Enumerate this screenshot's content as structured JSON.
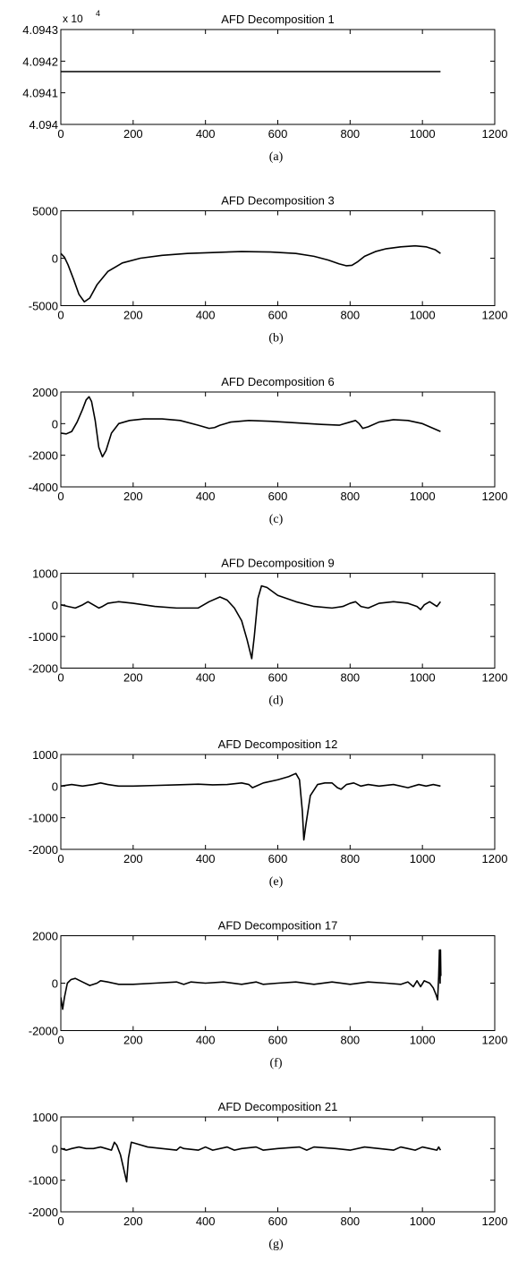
{
  "chart_data": [
    {
      "type": "line",
      "caption": "(a)",
      "title": "AFD Decomposition 1",
      "xlabel": "",
      "ylabel": "",
      "exponent_label": "x 10",
      "exponent_power": "4",
      "xlim": [
        0,
        1200
      ],
      "ylim": [
        4.094,
        4.0943
      ],
      "xticks": [
        "0",
        "200",
        "400",
        "600",
        "800",
        "1000",
        "1200"
      ],
      "yticks": [
        {
          "v": 4.094,
          "label": "4.094"
        },
        {
          "v": 4.0941,
          "label": "4.0941"
        },
        {
          "v": 4.0942,
          "label": "4.0942"
        },
        {
          "v": 4.0943,
          "label": "4.0943"
        }
      ],
      "grid": false,
      "x": [
        0,
        1050
      ],
      "y": [
        4.094167,
        4.094167
      ]
    },
    {
      "type": "line",
      "caption": "(b)",
      "title": "AFD Decomposition 3",
      "xlabel": "",
      "ylabel": "",
      "xlim": [
        0,
        1200
      ],
      "ylim": [
        -5000,
        5000
      ],
      "xticks": [
        "0",
        "200",
        "400",
        "600",
        "800",
        "1000",
        "1200"
      ],
      "yticks": [
        {
          "v": -5000,
          "label": "-5000"
        },
        {
          "v": 0,
          "label": "0"
        },
        {
          "v": 5000,
          "label": "5000"
        }
      ],
      "grid": false,
      "x": [
        0,
        10,
        20,
        35,
        50,
        65,
        80,
        100,
        130,
        170,
        220,
        280,
        350,
        420,
        500,
        580,
        650,
        700,
        740,
        770,
        790,
        805,
        820,
        840,
        870,
        900,
        940,
        980,
        1010,
        1035,
        1050
      ],
      "y": [
        500,
        100,
        -700,
        -2200,
        -3800,
        -4600,
        -4200,
        -2800,
        -1400,
        -500,
        0,
        300,
        500,
        600,
        700,
        650,
        500,
        200,
        -200,
        -600,
        -800,
        -750,
        -400,
        200,
        700,
        1000,
        1200,
        1300,
        1200,
        900,
        500
      ]
    },
    {
      "type": "line",
      "caption": "(c)",
      "title": "AFD Decomposition 6",
      "xlabel": "",
      "ylabel": "",
      "xlim": [
        0,
        1200
      ],
      "ylim": [
        -4000,
        2000
      ],
      "xticks": [
        "0",
        "200",
        "400",
        "600",
        "800",
        "1000",
        "1200"
      ],
      "yticks": [
        {
          "v": -4000,
          "label": "-4000"
        },
        {
          "v": -2000,
          "label": "-2000"
        },
        {
          "v": 0,
          "label": "0"
        },
        {
          "v": 2000,
          "label": "2000"
        }
      ],
      "grid": false,
      "x": [
        0,
        15,
        30,
        45,
        60,
        70,
        78,
        85,
        95,
        105,
        115,
        125,
        140,
        160,
        190,
        230,
        280,
        330,
        380,
        410,
        425,
        440,
        470,
        520,
        580,
        650,
        720,
        770,
        800,
        815,
        825,
        835,
        850,
        880,
        920,
        960,
        1000,
        1030,
        1050
      ],
      "y": [
        -600,
        -650,
        -500,
        100,
        900,
        1500,
        1700,
        1400,
        200,
        -1500,
        -2100,
        -1700,
        -600,
        0,
        200,
        300,
        300,
        200,
        -100,
        -300,
        -250,
        -100,
        100,
        200,
        150,
        50,
        -50,
        -100,
        100,
        200,
        0,
        -300,
        -200,
        100,
        250,
        200,
        0,
        -300,
        -500
      ]
    },
    {
      "type": "line",
      "caption": "(d)",
      "title": "AFD Decomposition 9",
      "xlabel": "",
      "ylabel": "",
      "xlim": [
        0,
        1200
      ],
      "ylim": [
        -2000,
        1000
      ],
      "xticks": [
        "0",
        "200",
        "400",
        "600",
        "800",
        "1000",
        "1200"
      ],
      "yticks": [
        {
          "v": -2000,
          "label": "-2000"
        },
        {
          "v": -1000,
          "label": "-1000"
        },
        {
          "v": 0,
          "label": "0"
        },
        {
          "v": 1000,
          "label": "1000"
        }
      ],
      "grid": false,
      "x": [
        0,
        20,
        40,
        60,
        75,
        90,
        105,
        115,
        130,
        160,
        200,
        260,
        320,
        380,
        410,
        440,
        460,
        480,
        500,
        515,
        528,
        535,
        545,
        555,
        570,
        600,
        650,
        700,
        750,
        780,
        800,
        815,
        830,
        850,
        880,
        920,
        960,
        985,
        995,
        1005,
        1020,
        1040,
        1050
      ],
      "y": [
        0,
        -50,
        -100,
        0,
        100,
        0,
        -100,
        -50,
        50,
        100,
        50,
        -50,
        -100,
        -100,
        100,
        250,
        150,
        -100,
        -500,
        -1100,
        -1700,
        -1000,
        200,
        600,
        550,
        300,
        100,
        -50,
        -100,
        -50,
        50,
        100,
        -50,
        -100,
        50,
        100,
        50,
        -50,
        -150,
        0,
        100,
        -50,
        100
      ]
    },
    {
      "type": "line",
      "caption": "(e)",
      "title": "AFD Decomposition 12",
      "xlabel": "",
      "ylabel": "",
      "xlim": [
        0,
        1200
      ],
      "ylim": [
        -2000,
        1000
      ],
      "xticks": [
        "0",
        "200",
        "400",
        "600",
        "800",
        "1000",
        "1200"
      ],
      "yticks": [
        {
          "v": -2000,
          "label": "-2000"
        },
        {
          "v": -1000,
          "label": "-1000"
        },
        {
          "v": 0,
          "label": "0"
        },
        {
          "v": 1000,
          "label": "1000"
        }
      ],
      "grid": false,
      "x": [
        0,
        30,
        60,
        90,
        110,
        130,
        160,
        200,
        260,
        320,
        380,
        420,
        460,
        500,
        520,
        530,
        540,
        560,
        600,
        630,
        650,
        660,
        668,
        672,
        678,
        690,
        710,
        730,
        750,
        765,
        775,
        790,
        810,
        830,
        850,
        880,
        920,
        960,
        990,
        1010,
        1030,
        1050
      ],
      "y": [
        0,
        50,
        0,
        50,
        100,
        50,
        0,
        0,
        20,
        40,
        60,
        40,
        50,
        100,
        50,
        -50,
        0,
        100,
        200,
        300,
        400,
        200,
        -800,
        -1700,
        -1200,
        -300,
        50,
        100,
        100,
        -50,
        -100,
        50,
        100,
        0,
        50,
        0,
        50,
        -50,
        50,
        0,
        50,
        0
      ]
    },
    {
      "type": "line",
      "caption": "(f)",
      "title": "AFD Decomposition 17",
      "xlabel": "",
      "ylabel": "",
      "xlim": [
        0,
        1200
      ],
      "ylim": [
        -2000,
        2000
      ],
      "xticks": [
        "0",
        "200",
        "400",
        "600",
        "800",
        "1000",
        "1200"
      ],
      "yticks": [
        {
          "v": -2000,
          "label": "-2000"
        },
        {
          "v": 0,
          "label": "0"
        },
        {
          "v": 2000,
          "label": "2000"
        }
      ],
      "grid": false,
      "x": [
        0,
        5,
        10,
        18,
        28,
        40,
        60,
        80,
        100,
        110,
        130,
        160,
        200,
        260,
        320,
        340,
        360,
        400,
        450,
        500,
        540,
        560,
        600,
        650,
        700,
        750,
        800,
        850,
        900,
        940,
        960,
        975,
        985,
        995,
        1005,
        1020,
        1030,
        1038,
        1042,
        1045,
        1047,
        1049,
        1050,
        1051
      ],
      "y": [
        -600,
        -1100,
        -600,
        0,
        150,
        200,
        50,
        -100,
        0,
        100,
        50,
        -50,
        -50,
        0,
        50,
        -50,
        50,
        0,
        50,
        -50,
        50,
        -50,
        0,
        50,
        -50,
        50,
        -50,
        50,
        0,
        -50,
        50,
        -150,
        100,
        -150,
        100,
        0,
        -200,
        -500,
        -700,
        300,
        1400,
        0,
        1400,
        300
      ]
    },
    {
      "type": "line",
      "caption": "(g)",
      "title": "AFD Decomposition 21",
      "xlabel": "",
      "ylabel": "",
      "xlim": [
        0,
        1200
      ],
      "ylim": [
        -2000,
        1000
      ],
      "xticks": [
        "0",
        "200",
        "400",
        "600",
        "800",
        "1000",
        "1200"
      ],
      "yticks": [
        {
          "v": -2000,
          "label": "-2000"
        },
        {
          "v": -1000,
          "label": "-1000"
        },
        {
          "v": 0,
          "label": "0"
        },
        {
          "v": 1000,
          "label": "1000"
        }
      ],
      "grid": false,
      "x": [
        0,
        15,
        30,
        50,
        70,
        90,
        110,
        125,
        140,
        148,
        155,
        165,
        175,
        182,
        187,
        195,
        210,
        240,
        280,
        320,
        330,
        340,
        380,
        400,
        420,
        460,
        480,
        500,
        540,
        560,
        600,
        660,
        680,
        700,
        760,
        800,
        840,
        880,
        920,
        940,
        960,
        980,
        1000,
        1020,
        1040,
        1045,
        1050
      ],
      "y": [
        0,
        -50,
        0,
        50,
        0,
        0,
        50,
        0,
        -50,
        200,
        100,
        -200,
        -700,
        -1050,
        -300,
        200,
        150,
        50,
        0,
        -50,
        50,
        0,
        -50,
        50,
        -50,
        50,
        -50,
        0,
        50,
        -50,
        0,
        50,
        -50,
        50,
        0,
        -50,
        50,
        0,
        -50,
        50,
        0,
        -50,
        50,
        0,
        -50,
        50,
        -50
      ]
    }
  ]
}
